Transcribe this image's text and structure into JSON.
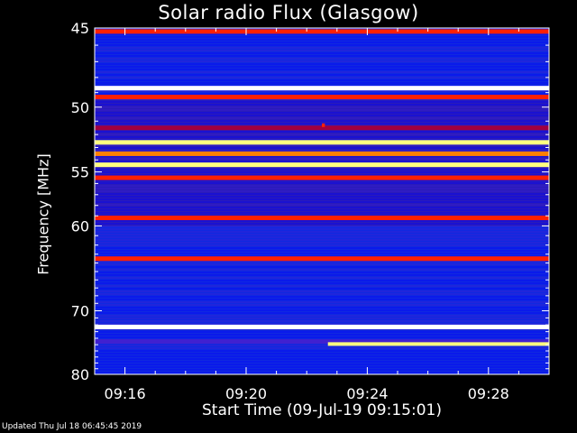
{
  "chart_data": {
    "type": "heatmap",
    "title": "Solar radio Flux (Glasgow)",
    "ylabel": "Frequency [MHz]",
    "xlabel": "Start Time (09-Jul-19 09:15:01)",
    "y_ticks": [
      45,
      50,
      55,
      60,
      70,
      80
    ],
    "y_range": [
      45,
      80
    ],
    "y_scale": "reciprocal",
    "x_ticks": [
      "09:16",
      "09:20",
      "09:24",
      "09:28"
    ],
    "x_range_minutes": [
      15.0,
      30.0
    ],
    "colormap": [
      "#000080",
      "#0000ff",
      "#4020d0",
      "#a00040",
      "#ff2000",
      "#ff8000",
      "#ffff80",
      "#ffffff"
    ],
    "bands": [
      {
        "f": 45.2,
        "level": 0.55
      },
      {
        "f": 48.7,
        "level": 1.0
      },
      {
        "f": 49.3,
        "level": 0.6
      },
      {
        "f": 51.5,
        "level": 0.4
      },
      {
        "f": 52.6,
        "level": 0.85
      },
      {
        "f": 53.5,
        "level": 0.75
      },
      {
        "f": 54.4,
        "level": 0.8
      },
      {
        "f": 55.5,
        "level": 0.55
      },
      {
        "f": 59.2,
        "level": 0.55
      },
      {
        "f": 63.5,
        "level": 0.6
      },
      {
        "f": 72.3,
        "level": 1.0
      },
      {
        "f": 74.5,
        "level": 0.25
      }
    ],
    "events": [
      {
        "f": 74.9,
        "t_start": 22.7,
        "t_end": 30.0,
        "level": 0.8
      },
      {
        "f": 51.3,
        "t_start": 22.5,
        "t_end": 22.6,
        "level": 0.6
      }
    ]
  },
  "footer": "Updated Thu Jul 18 06:45:45 2019"
}
